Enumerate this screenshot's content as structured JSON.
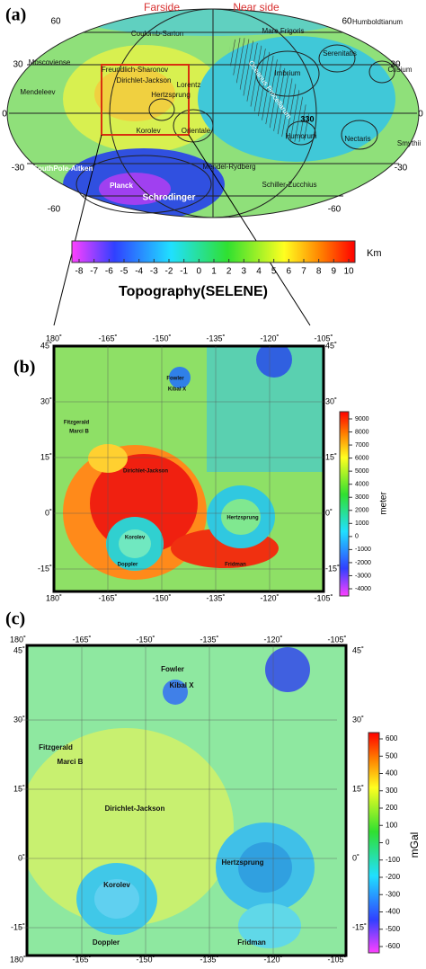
{
  "panel_a": {
    "label": "(a)",
    "side_labels": [
      "Farside",
      "Near side"
    ],
    "lat_labels_left": [
      "60",
      "30",
      "0",
      "-30",
      "-60"
    ],
    "lat_labels_right": [
      "60",
      "30",
      "0",
      "-30",
      "-60"
    ],
    "lon_label": "330",
    "features": [
      "Coulomb-Sarton",
      "Mare Frigoris",
      "Humboldtianum",
      "Moscoviense",
      "Freundlich-Sharonov",
      "Dirichlet-Jackson",
      "Hertzsprung",
      "Lorentz",
      "Imbrium",
      "Serenitatis",
      "Crisium",
      "Oceanus Procellarum",
      "Orientale",
      "Korolev",
      "Mendeleev",
      "Humorum",
      "Nectaris",
      "Smythii",
      "Mendel-Rydberg",
      "Schiller-Zucchius",
      "SouthPole-Aitken",
      "Planck",
      "Schrodinger"
    ],
    "colorbar": {
      "ticks": [
        -8,
        -7,
        -6,
        -5,
        -4,
        -3,
        -2,
        -1,
        0,
        1,
        2,
        3,
        4,
        5,
        6,
        7,
        8,
        9,
        10
      ],
      "unit": "Km",
      "title": "Topography(SELENE)"
    }
  },
  "panel_b": {
    "label": "(b)",
    "lon_labels": [
      "180˚",
      "-165˚",
      "-150˚",
      "-135˚",
      "-120˚",
      "-105˚"
    ],
    "lat_labels": [
      "45˚",
      "30˚",
      "15˚",
      "0˚",
      "-15˚"
    ],
    "features": [
      "Fowler",
      "Kibal X",
      "Fitzgerald",
      "Marci B",
      "Dirichlet-Jackson",
      "Korolev",
      "Hertzsprung",
      "Doppler",
      "Fridman"
    ],
    "colorbar": {
      "ticks": [
        9000,
        8000,
        7000,
        6000,
        5000,
        4000,
        3000,
        2000,
        1000,
        0,
        -1000,
        -2000,
        -3000,
        -4000
      ],
      "unit": "meter"
    }
  },
  "panel_c": {
    "label": "(c)",
    "lon_labels": [
      "180˚",
      "-165˚",
      "-150˚",
      "-135˚",
      "-120˚",
      "-105˚"
    ],
    "lat_labels": [
      "45˚",
      "30˚",
      "15˚",
      "0˚",
      "-15˚"
    ],
    "features": [
      "Fowler",
      "Kibal X",
      "Fitzgerald",
      "Marci B",
      "Dirichlet-Jackson",
      "Korolev",
      "Hertzsprung",
      "Doppler",
      "Fridman"
    ],
    "colorbar": {
      "ticks": [
        600,
        500,
        400,
        300,
        200,
        100,
        0,
        -100,
        -200,
        -300,
        -400,
        -500,
        -600
      ],
      "unit": "mGal"
    }
  }
}
